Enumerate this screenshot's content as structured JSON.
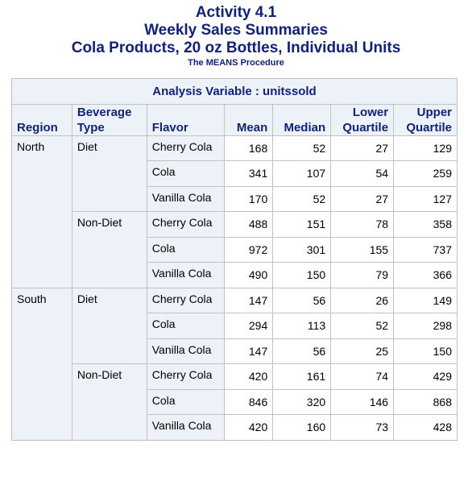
{
  "titles": {
    "line1": "Activity 4.1",
    "line2": "Weekly Sales Summaries",
    "line3": "Cola Products, 20 oz Bottles, Individual Units",
    "procedure": "The MEANS Procedure"
  },
  "table": {
    "analysis_variable": "Analysis Variable : unitssold",
    "headers": {
      "region": "Region",
      "beverage_type_1": "Beverage",
      "beverage_type_2": "Type",
      "flavor": "Flavor",
      "mean": "Mean",
      "median": "Median",
      "lower_1": "Lower",
      "lower_2": "Quartile",
      "upper_1": "Upper",
      "upper_2": "Quartile"
    },
    "regions": [
      {
        "name": "North",
        "types": [
          {
            "name": "Diet",
            "rows": [
              {
                "flavor": "Cherry Cola",
                "mean": "168",
                "median": "52",
                "lower": "27",
                "upper": "129"
              },
              {
                "flavor": "Cola",
                "mean": "341",
                "median": "107",
                "lower": "54",
                "upper": "259"
              },
              {
                "flavor": "Vanilla Cola",
                "mean": "170",
                "median": "52",
                "lower": "27",
                "upper": "127"
              }
            ]
          },
          {
            "name": "Non-Diet",
            "rows": [
              {
                "flavor": "Cherry Cola",
                "mean": "488",
                "median": "151",
                "lower": "78",
                "upper": "358"
              },
              {
                "flavor": "Cola",
                "mean": "972",
                "median": "301",
                "lower": "155",
                "upper": "737"
              },
              {
                "flavor": "Vanilla Cola",
                "mean": "490",
                "median": "150",
                "lower": "79",
                "upper": "366"
              }
            ]
          }
        ]
      },
      {
        "name": "South",
        "types": [
          {
            "name": "Diet",
            "rows": [
              {
                "flavor": "Cherry Cola",
                "mean": "147",
                "median": "56",
                "lower": "26",
                "upper": "149"
              },
              {
                "flavor": "Cola",
                "mean": "294",
                "median": "113",
                "lower": "52",
                "upper": "298"
              },
              {
                "flavor": "Vanilla Cola",
                "mean": "147",
                "median": "56",
                "lower": "25",
                "upper": "150"
              }
            ]
          },
          {
            "name": "Non-Diet",
            "rows": [
              {
                "flavor": "Cherry Cola",
                "mean": "420",
                "median": "161",
                "lower": "74",
                "upper": "429"
              },
              {
                "flavor": "Cola",
                "mean": "846",
                "median": "320",
                "lower": "146",
                "upper": "868"
              },
              {
                "flavor": "Vanilla Cola",
                "mean": "420",
                "median": "160",
                "lower": "73",
                "upper": "428"
              }
            ]
          }
        ]
      }
    ]
  }
}
